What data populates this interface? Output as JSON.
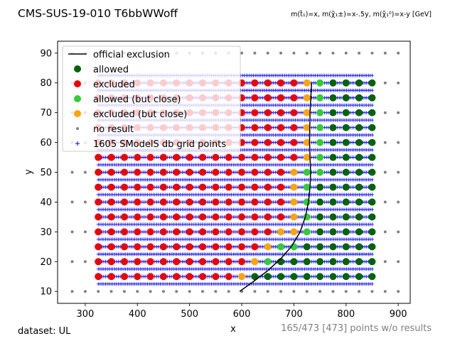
{
  "chart_data": {
    "type": "scatter",
    "title": "CMS-SUS-19-010 T6bbWWoff",
    "subtitle": "m(t̃₁)=x, m(χ̃₁±)=x-.5y, m(χ̃₁⁰)=x-y [GeV]",
    "xlabel": "x",
    "ylabel": "y",
    "xlim": [
      247,
      923
    ],
    "ylim": [
      6,
      94
    ],
    "xticks": [
      "300",
      "400",
      "500",
      "600",
      "700",
      "800",
      "900"
    ],
    "yticks": [
      "10",
      "20",
      "30",
      "40",
      "50",
      "60",
      "70",
      "80",
      "90"
    ],
    "footer_left": "dataset: UL",
    "footer_right": "165/473 [473] points w/o results",
    "legend_position": "upper left",
    "legend": [
      {
        "key": "official",
        "label": "official exclusion"
      },
      {
        "key": "allowed",
        "label": "allowed"
      },
      {
        "key": "excluded",
        "label": "excluded"
      },
      {
        "key": "allowed_close",
        "label": "allowed (but close)"
      },
      {
        "key": "excluded_close",
        "label": "excluded (but close)"
      },
      {
        "key": "noresult",
        "label": "no result"
      },
      {
        "key": "grid",
        "label": "1605 SModelS db grid points"
      }
    ],
    "colors": {
      "official": "#000000",
      "allowed": "#006400",
      "excluded": "#ee0000",
      "allowed_close": "#32cd32",
      "excluded_close": "#ffa500",
      "noresult": "#808080",
      "grid": "#0000ff"
    },
    "grid_points": {
      "x_range": [
        325,
        850
      ],
      "x_step": 3.5,
      "y_range": [
        12.5,
        82.5
      ],
      "y_step": 2.5
    },
    "points": {
      "x_range": [
        325,
        850
      ],
      "x_step": 25,
      "y_rows": [
        15,
        20,
        25,
        30,
        35,
        40,
        45,
        50,
        55,
        60,
        65,
        70,
        75,
        80
      ],
      "excluded_close": [
        [
          600,
          15
        ],
        [
          625,
          20
        ],
        [
          650,
          25
        ],
        [
          675,
          30
        ],
        [
          700,
          30
        ],
        [
          700,
          35
        ],
        [
          700,
          40
        ],
        [
          700,
          45
        ],
        [
          700,
          50
        ],
        [
          725,
          55
        ],
        [
          725,
          60
        ],
        [
          725,
          65
        ],
        [
          725,
          70
        ],
        [
          725,
          75
        ],
        [
          725,
          80
        ]
      ],
      "allowed_close": [
        [
          650,
          20
        ],
        [
          675,
          25
        ],
        [
          700,
          25
        ],
        [
          725,
          30
        ],
        [
          725,
          35
        ],
        [
          725,
          40
        ],
        [
          725,
          45
        ],
        [
          725,
          50
        ],
        [
          750,
          50
        ],
        [
          750,
          55
        ],
        [
          750,
          60
        ],
        [
          750,
          65
        ],
        [
          750,
          70
        ],
        [
          750,
          75
        ],
        [
          750,
          80
        ]
      ],
      "excluded_below": [
        625,
        650,
        675,
        700,
        700,
        700,
        700,
        700,
        725,
        725,
        725,
        725,
        725,
        725
      ]
    },
    "noresult_points": {
      "x_range": [
        275,
        900
      ],
      "x_step": 25,
      "y_values": [
        10,
        20,
        30,
        40,
        50,
        60,
        70,
        80,
        90
      ]
    },
    "exclusion_line": {
      "x": [
        596,
        620,
        650,
        675,
        695,
        712,
        722,
        728,
        731,
        732,
        731,
        730,
        731,
        734
      ],
      "y": [
        10,
        13,
        17,
        21,
        25,
        30,
        35,
        40,
        45,
        50,
        55,
        60,
        70,
        80
      ]
    }
  }
}
